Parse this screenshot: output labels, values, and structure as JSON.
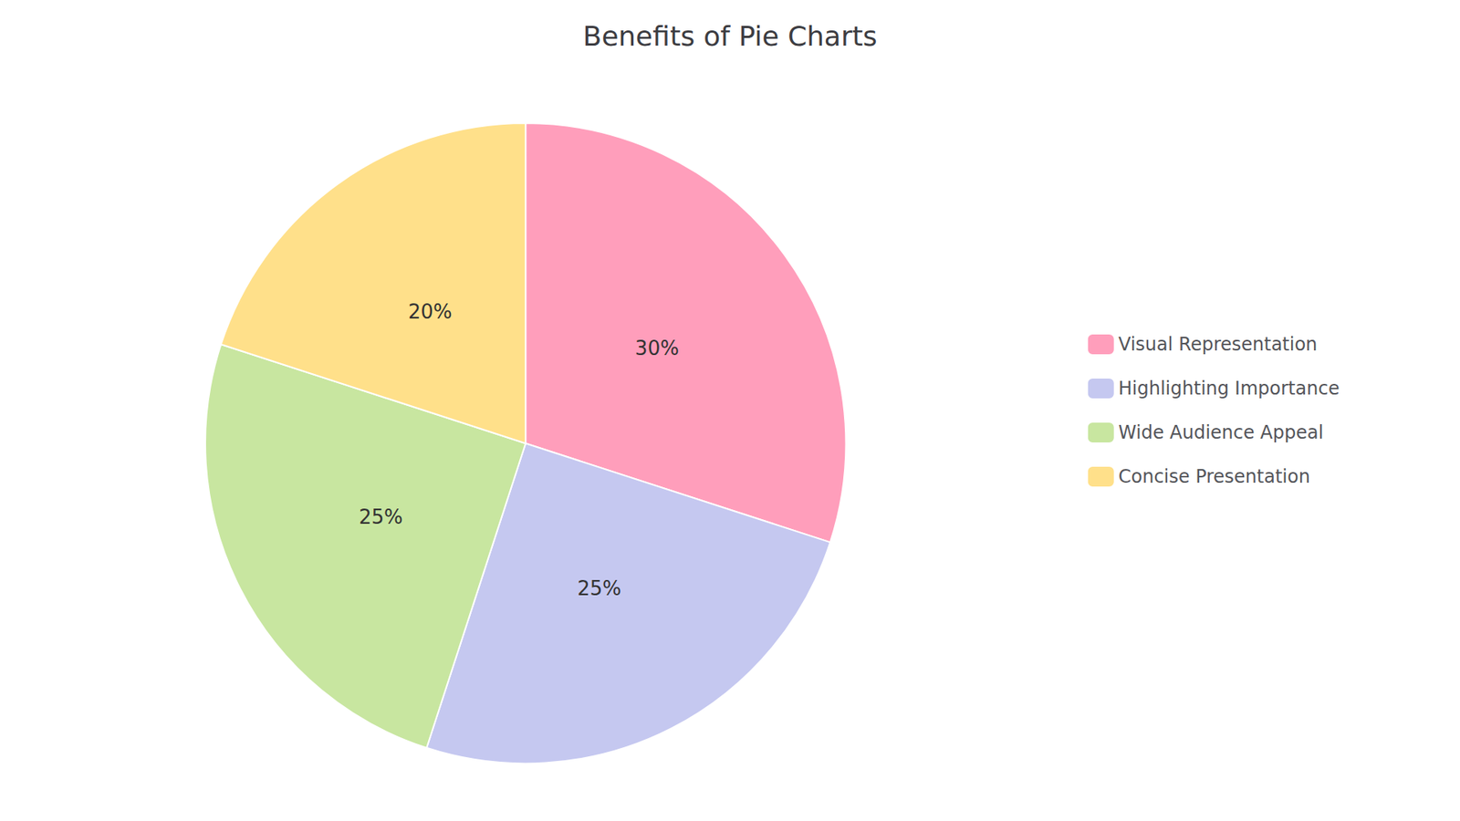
{
  "chart_data": {
    "type": "pie",
    "title": "Benefits of Pie Charts",
    "categories": [
      "Visual Representation",
      "Highlighting Importance",
      "Wide Audience Appeal",
      "Concise Presentation"
    ],
    "values": [
      30,
      25,
      25,
      20
    ],
    "value_labels": [
      "30%",
      "25%",
      "25%",
      "20%"
    ],
    "colors": [
      "#FF9EBB",
      "#C5C8F0",
      "#C8E6A0",
      "#FFE08A"
    ],
    "data_labels": true,
    "legend": "right"
  }
}
